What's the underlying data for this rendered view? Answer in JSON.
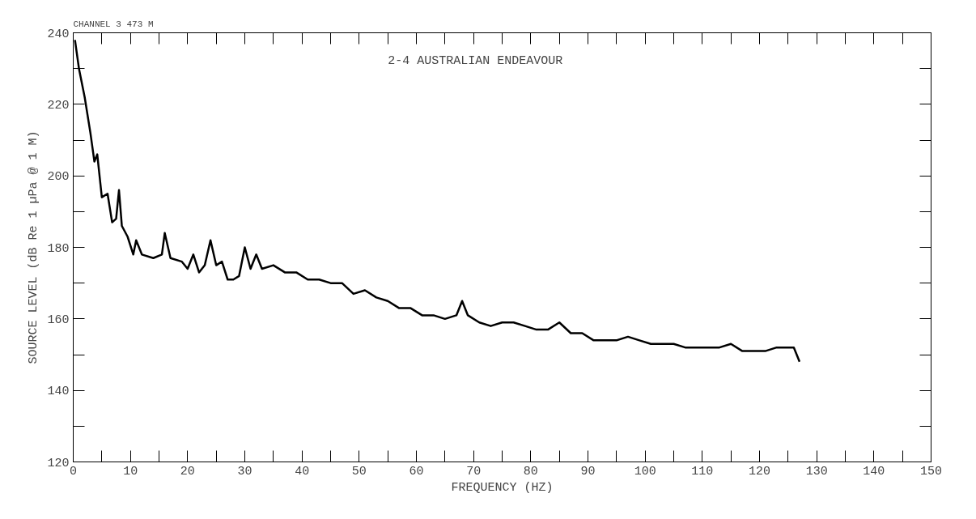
{
  "chart_data": {
    "type": "line",
    "title": "2-4   AUSTRALIAN ENDEAVOUR",
    "xlabel": "FREQUENCY (HZ)",
    "ylabel": "SOURCE LEVEL (dB Re 1 µPa @ 1 M)",
    "annotations": [
      "CHANNEL  3       473   M"
    ],
    "xlim": [
      0,
      150
    ],
    "ylim": [
      120,
      240
    ],
    "xticks": [
      0,
      {
        "value": 5,
        "label": null
      },
      10,
      {
        "value": 15,
        "label": null
      },
      20,
      {
        "value": 25,
        "label": null
      },
      30,
      {
        "value": 35,
        "label": null
      },
      40,
      {
        "value": 45,
        "label": null
      },
      50,
      {
        "value": 55,
        "label": null
      },
      60,
      {
        "value": 65,
        "label": null
      },
      70,
      {
        "value": 75,
        "label": null
      },
      80,
      {
        "value": 85,
        "label": null
      },
      90,
      {
        "value": 95,
        "label": null
      },
      100,
      {
        "value": 105,
        "label": null
      },
      110,
      {
        "value": 115,
        "label": null
      },
      120,
      {
        "value": 125,
        "label": null
      },
      130,
      {
        "value": 135,
        "label": null
      },
      140,
      {
        "value": 145,
        "label": null
      },
      150
    ],
    "yticks": [
      120,
      {
        "value": 130,
        "label": null
      },
      140,
      {
        "value": 150,
        "label": null
      },
      160,
      {
        "value": 170,
        "label": null
      },
      180,
      {
        "value": 190,
        "label": null
      },
      200,
      {
        "value": 210,
        "label": null
      },
      220,
      {
        "value": 230,
        "label": null
      },
      240
    ],
    "grid": false,
    "marker": "none",
    "line_style": "solid",
    "series": [
      {
        "color": "#000000",
        "x": [
          0.3,
          1,
          2,
          3,
          3.7,
          4.2,
          5,
          6,
          6.8,
          7.5,
          8,
          8.5,
          9.5,
          10.5,
          11,
          12,
          14,
          15.5,
          16,
          17,
          19,
          20,
          21,
          22,
          23,
          24,
          25,
          26,
          27,
          28,
          29,
          30,
          31,
          32,
          33,
          35,
          37,
          39,
          41,
          43,
          45,
          47,
          49,
          51,
          53,
          55,
          57,
          59,
          61,
          63,
          65,
          67,
          68,
          69,
          71,
          73,
          75,
          77,
          79,
          81,
          83,
          85,
          87,
          89,
          91,
          93,
          95,
          97,
          99,
          101,
          103,
          105,
          107,
          109,
          111,
          113,
          115,
          117,
          119,
          121,
          123,
          125,
          126,
          127
        ],
        "values": [
          238,
          230,
          222,
          212,
          204,
          206,
          194,
          195,
          187,
          188,
          196,
          186,
          183,
          178,
          182,
          178,
          177,
          178,
          184,
          177,
          176,
          174,
          178,
          173,
          175,
          182,
          175,
          176,
          171,
          171,
          172,
          180,
          174,
          178,
          174,
          175,
          173,
          173,
          171,
          171,
          170,
          170,
          167,
          168,
          166,
          165,
          163,
          163,
          161,
          161,
          160,
          161,
          165,
          161,
          159,
          158,
          159,
          159,
          158,
          157,
          157,
          159,
          156,
          156,
          154,
          154,
          154,
          155,
          154,
          153,
          153,
          153,
          152,
          152,
          152,
          152,
          153,
          151,
          151,
          151,
          152,
          152,
          152,
          148
        ]
      }
    ]
  }
}
